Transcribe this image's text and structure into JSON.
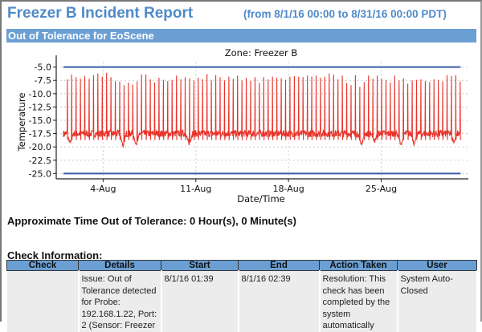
{
  "header": {
    "title": "Freezer B Incident Report",
    "range": "(from 8/1/16 00:00 to 8/31/16 00:00 PDT)"
  },
  "banner": "Out of Tolerance for EoScene",
  "chart_data": {
    "type": "line",
    "title": "Zone: Freezer B",
    "xlabel": "Date/Time",
    "ylabel": "Temperature",
    "xlim": [
      "2016-07-31T11:00",
      "2016-08-31T14:00"
    ],
    "ylim": [
      -26,
      -4
    ],
    "xticks": [
      "4-Aug",
      "11-Aug",
      "18-Aug",
      "25-Aug"
    ],
    "xtick_dates": [
      "2016-08-04",
      "2016-08-11",
      "2016-08-18",
      "2016-08-25"
    ],
    "yticks": [
      "-5.0",
      "-7.5",
      "-10.0",
      "-12.5",
      "-15.0",
      "-17.5",
      "-20.0",
      "-22.5",
      "-25.0"
    ],
    "grid": true,
    "thresholds": {
      "upper": -5.0,
      "lower": -25.0,
      "color": "#3a5ba8",
      "start": "2016-08-01T00:00",
      "end": "2016-08-31T00:00"
    },
    "series_color": "#e8332a",
    "baseline": -17.5,
    "defrost_peaks": [
      -7.3,
      -6.4,
      -6.9,
      -7.2,
      -6.7,
      -7.2,
      -6.5,
      -6.2,
      -6.8,
      -6.1,
      -6.9,
      -7.6,
      -7.7,
      -8.4,
      -7.9,
      -8.3,
      -7.7,
      -6.4,
      -6.4,
      -7.3,
      -7.9,
      -7.0,
      -7.4,
      -7.6,
      -7.4,
      -6.6,
      -7.3,
      -6.9,
      -7.1,
      -7.5,
      -7.0,
      -7.3,
      -6.3,
      -7.5,
      -6.5,
      -6.9,
      -7.5,
      -6.8,
      -7.2,
      -6.6,
      -7.5,
      -7.0,
      -7.6,
      -6.9,
      -8.0,
      -6.9,
      -7.3,
      -6.8,
      -7.0,
      -7.1,
      -7.4,
      -6.8,
      -6.7,
      -6.8,
      -6.9,
      -6.6,
      -6.8,
      -6.6,
      -7.0,
      -6.8,
      -6.2,
      -6.4,
      -7.3,
      -6.6,
      -8.0,
      -8.4,
      -6.5,
      -8.7,
      -7.8,
      -6.6,
      -7.2,
      -6.6,
      -7.2,
      -7.4,
      -7.9,
      -6.6,
      -7.5,
      -7.1,
      -8.1,
      -7.5,
      -7.4,
      -7.3,
      -7.6,
      -7.8,
      -7.3,
      -7.4,
      -7.7,
      -6.5,
      -6.7,
      -6.5,
      -7.7
    ],
    "troughs": [
      [
        "2016-08-01",
        -19.3
      ],
      [
        "2016-08-05",
        -19.9
      ],
      [
        "2016-08-06",
        -19.7
      ],
      [
        "2016-08-10",
        -19.6
      ],
      [
        "2016-08-23",
        -19.7
      ],
      [
        "2016-08-24",
        -19.0
      ],
      [
        "2016-08-26",
        -19.8
      ],
      [
        "2016-08-27",
        -19.6
      ],
      [
        "2016-08-30",
        -19.2
      ]
    ]
  },
  "summary": "Approximate Time Out of Tolerance: 0 Hour(s), 0 Minute(s)",
  "check": {
    "heading": "Check Information:",
    "columns": [
      "Check",
      "Details",
      "Start",
      "End",
      "Action Taken",
      "User"
    ],
    "rows": [
      [
        "",
        "Issue: Out of Tolerance detected for Probe: 192.168.1.22, Port: 2 (Sensor: Freezer",
        "8/1/16 01:39",
        "8/1/16 02:39",
        "Resolution: This check has been completed by the system automatically",
        "System Auto-Closed"
      ]
    ]
  }
}
